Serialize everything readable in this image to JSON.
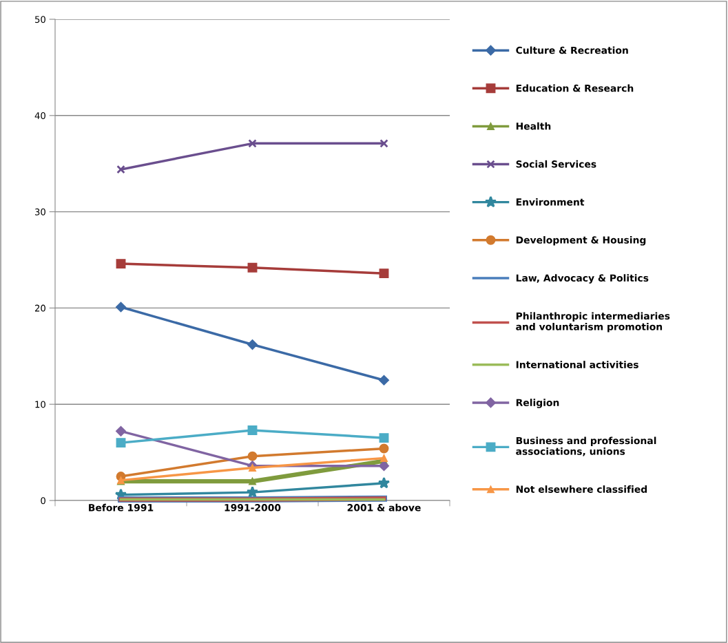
{
  "chart_data": {
    "type": "line",
    "categories": [
      "Before 1991",
      "1991-2000",
      "2001 & above"
    ],
    "ylim": [
      0,
      50
    ],
    "yticks": [
      0,
      10,
      20,
      30,
      40,
      50
    ],
    "grid": "y",
    "legend": "right",
    "series": [
      {
        "name": "Culture & Recreation",
        "color": "#3b6aa6",
        "marker": "diamond",
        "values": [
          20.1,
          16.2,
          12.5
        ]
      },
      {
        "name": "Education & Research",
        "color": "#a63c3a",
        "marker": "square",
        "values": [
          24.6,
          24.2,
          23.6
        ]
      },
      {
        "name": "Health",
        "color": "#7f9b3d",
        "marker": "triangle",
        "values": [
          2.0,
          2.0,
          4.1
        ]
      },
      {
        "name": "Social Services",
        "color": "#6a4e8e",
        "marker": "cross",
        "values": [
          34.4,
          37.1,
          37.1
        ]
      },
      {
        "name": "Environment",
        "color": "#31879e",
        "marker": "star",
        "values": [
          0.6,
          0.85,
          1.8
        ]
      },
      {
        "name": "Development & Housing",
        "color": "#d27a2e",
        "marker": "circle",
        "values": [
          2.5,
          4.6,
          5.4
        ]
      },
      {
        "name": "Law, Advocacy & Politics",
        "color": "#4a7ebb",
        "marker": "none",
        "values": [
          0.1,
          0.1,
          0.2
        ]
      },
      {
        "name": "Philanthropic intermediaries\nand voluntarism promotion",
        "color": "#c0504d",
        "marker": "none",
        "values": [
          0.1,
          0.1,
          0.2
        ]
      },
      {
        "name": "International activities",
        "color": "#9bbb59",
        "marker": "none",
        "values": [
          0.1,
          0.1,
          0.1
        ]
      },
      {
        "name": "Religion",
        "color": "#8064a2",
        "marker": "diamond",
        "values": [
          7.2,
          3.6,
          3.6
        ]
      },
      {
        "name": "Business and professional\nassociations, unions",
        "color": "#4bacc6",
        "marker": "square",
        "values": [
          6.0,
          7.3,
          6.5
        ]
      },
      {
        "name": "Not elsewhere classified",
        "color": "#f79646",
        "marker": "triangle",
        "values": [
          2.1,
          3.4,
          4.4
        ]
      }
    ]
  }
}
